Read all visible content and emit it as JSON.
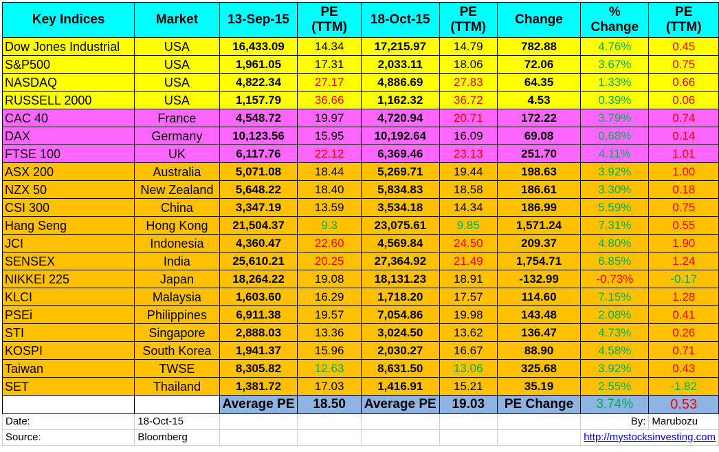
{
  "headers": {
    "key_indices": "Key Indices",
    "market": "Market",
    "date1": "13-Sep-15",
    "pe1_line1": "PE",
    "pe1_line2": "(TTM)",
    "date2": "18-Oct-15",
    "pe2_line1": "PE",
    "pe2_line2": "(TTM)",
    "change": "Change",
    "pct_line1": "%",
    "pct_line2": "Change",
    "pechg_line1": "PE",
    "pechg_line2": "(TTM)"
  },
  "rows": [
    {
      "index": "Dow Jones Industrial",
      "market": "USA",
      "v1": "16,433.09",
      "pe1": "14.34",
      "v2": "17,215.97",
      "pe2": "14.79",
      "chg": "782.88",
      "pct": "4.76%",
      "pechg": "0.45",
      "group": "usa",
      "pe1c": "blk",
      "pe2c": "blk",
      "pctc": "green",
      "pechgc": "red"
    },
    {
      "index": "S&P500",
      "market": "USA",
      "v1": "1,961.05",
      "pe1": "17.31",
      "v2": "2,033.11",
      "pe2": "18.06",
      "chg": "72.06",
      "pct": "3.67%",
      "pechg": "0.75",
      "group": "usa",
      "pe1c": "blk",
      "pe2c": "blk",
      "pctc": "green",
      "pechgc": "red"
    },
    {
      "index": "NASDAQ",
      "market": "USA",
      "v1": "4,822.34",
      "pe1": "27.17",
      "v2": "4,886.69",
      "pe2": "27.83",
      "chg": "64.35",
      "pct": "1.33%",
      "pechg": "0.66",
      "group": "usa",
      "pe1c": "red",
      "pe2c": "red",
      "pctc": "green",
      "pechgc": "red"
    },
    {
      "index": "RUSSELL 2000",
      "market": "USA",
      "v1": "1,157.79",
      "pe1": "36.66",
      "v2": "1,162.32",
      "pe2": "36.72",
      "chg": "4.53",
      "pct": "0.39%",
      "pechg": "0.06",
      "group": "usa",
      "pe1c": "red",
      "pe2c": "red",
      "pctc": "green",
      "pechgc": "red"
    },
    {
      "index": "CAC 40",
      "market": "France",
      "v1": "4,548.72",
      "pe1": "19.97",
      "v2": "4,720.94",
      "pe2": "20.71",
      "chg": "172.22",
      "pct": "3.79%",
      "pechg": "0.74",
      "group": "eu",
      "pe1c": "blk",
      "pe2c": "red",
      "pctc": "green",
      "pechgc": "red"
    },
    {
      "index": "DAX",
      "market": "Germany",
      "v1": "10,123.56",
      "pe1": "15.95",
      "v2": "10,192.64",
      "pe2": "16.09",
      "chg": "69.08",
      "pct": "0.68%",
      "pechg": "0.14",
      "group": "eu",
      "pe1c": "blk",
      "pe2c": "blk",
      "pctc": "green",
      "pechgc": "red"
    },
    {
      "index": "FTSE 100",
      "market": "UK",
      "v1": "6,117.76",
      "pe1": "22.12",
      "v2": "6,369.46",
      "pe2": "23.13",
      "chg": "251.70",
      "pct": "4.11%",
      "pechg": "1.01",
      "group": "eu",
      "pe1c": "red",
      "pe2c": "red",
      "pctc": "green",
      "pechgc": "red"
    },
    {
      "index": "ASX 200",
      "market": "Australia",
      "v1": "5,071.08",
      "pe1": "18.44",
      "v2": "5,269.71",
      "pe2": "19.44",
      "chg": "198.63",
      "pct": "3.92%",
      "pechg": "1.00",
      "group": "asia",
      "pe1c": "blk",
      "pe2c": "blk",
      "pctc": "green",
      "pechgc": "red"
    },
    {
      "index": "NZX 50",
      "market": "New Zealand",
      "v1": "5,648.22",
      "pe1": "18.40",
      "v2": "5,834.83",
      "pe2": "18.58",
      "chg": "186.61",
      "pct": "3.30%",
      "pechg": "0.18",
      "group": "asia",
      "pe1c": "blk",
      "pe2c": "blk",
      "pctc": "green",
      "pechgc": "red"
    },
    {
      "index": "CSI 300",
      "market": "China",
      "v1": "3,347.19",
      "pe1": "13.59",
      "v2": "3,534.18",
      "pe2": "14.34",
      "chg": "186.99",
      "pct": "5.59%",
      "pechg": "0.75",
      "group": "asia",
      "pe1c": "blk",
      "pe2c": "blk",
      "pctc": "green",
      "pechgc": "red"
    },
    {
      "index": "Hang Seng",
      "market": "Hong Kong",
      "v1": "21,504.37",
      "pe1": "9.3",
      "v2": "23,075.61",
      "pe2": "9.85",
      "chg": "1,571.24",
      "pct": "7.31%",
      "pechg": "0.55",
      "group": "asia",
      "pe1c": "green",
      "pe2c": "green",
      "pctc": "green",
      "pechgc": "red"
    },
    {
      "index": "JCI",
      "market": "Indonesia",
      "v1": "4,360.47",
      "pe1": "22.60",
      "v2": "4,569.84",
      "pe2": "24.50",
      "chg": "209.37",
      "pct": "4.80%",
      "pechg": "1.90",
      "group": "asia",
      "pe1c": "red",
      "pe2c": "red",
      "pctc": "green",
      "pechgc": "red"
    },
    {
      "index": "SENSEX",
      "market": "India",
      "v1": "25,610.21",
      "pe1": "20.25",
      "v2": "27,364.92",
      "pe2": "21.49",
      "chg": "1,754.71",
      "pct": "6.85%",
      "pechg": "1.24",
      "group": "asia",
      "pe1c": "red",
      "pe2c": "red",
      "pctc": "green",
      "pechgc": "red"
    },
    {
      "index": "NIKKEI 225",
      "market": "Japan",
      "v1": "18,264.22",
      "pe1": "19.08",
      "v2": "18,131.23",
      "pe2": "18.91",
      "chg": "-132.99",
      "pct": "-0.73%",
      "pechg": "-0.17",
      "group": "asia",
      "pe1c": "blk",
      "pe2c": "blk",
      "pctc": "red",
      "pechgc": "green"
    },
    {
      "index": "KLCI",
      "market": "Malaysia",
      "v1": "1,603.60",
      "pe1": "16.29",
      "v2": "1,718.20",
      "pe2": "17.57",
      "chg": "114.60",
      "pct": "7.15%",
      "pechg": "1.28",
      "group": "asia",
      "pe1c": "blk",
      "pe2c": "blk",
      "pctc": "green",
      "pechgc": "red"
    },
    {
      "index": "PSEi",
      "market": "Philippines",
      "v1": "6,911.38",
      "pe1": "19.57",
      "v2": "7,054.86",
      "pe2": "19.98",
      "chg": "143.48",
      "pct": "2.08%",
      "pechg": "0.41",
      "group": "asia",
      "pe1c": "blk",
      "pe2c": "blk",
      "pctc": "green",
      "pechgc": "red"
    },
    {
      "index": "STI",
      "market": "Singapore",
      "v1": "2,888.03",
      "pe1": "13.36",
      "v2": "3,024.50",
      "pe2": "13.62",
      "chg": "136.47",
      "pct": "4.73%",
      "pechg": "0.26",
      "group": "asia",
      "pe1c": "blk",
      "pe2c": "blk",
      "pctc": "green",
      "pechgc": "red"
    },
    {
      "index": "KOSPI",
      "market": "South Korea",
      "v1": "1,941.37",
      "pe1": "15.96",
      "v2": "2,030.27",
      "pe2": "16.67",
      "chg": "88.90",
      "pct": "4.58%",
      "pechg": "0.71",
      "group": "asia",
      "pe1c": "blk",
      "pe2c": "blk",
      "pctc": "green",
      "pechgc": "red"
    },
    {
      "index": "Taiwan",
      "market": "TWSE",
      "v1": "8,305.82",
      "pe1": "12.63",
      "v2": "8,631.50",
      "pe2": "13.06",
      "chg": "325.68",
      "pct": "3.92%",
      "pechg": "0.43",
      "group": "asia",
      "pe1c": "green",
      "pe2c": "green",
      "pctc": "green",
      "pechgc": "red"
    },
    {
      "index": "SET",
      "market": "Thailand",
      "v1": "1,381.72",
      "pe1": "17.03",
      "v2": "1,416.91",
      "pe2": "15.21",
      "chg": "35.19",
      "pct": "2.55%",
      "pechg": "-1.82",
      "group": "asia",
      "pe1c": "blk",
      "pe2c": "blk",
      "pctc": "green",
      "pechgc": "green"
    }
  ],
  "averages": {
    "label1": "Average PE",
    "value1": "18.50",
    "label2": "Average PE",
    "value2": "19.03",
    "pe_change_label": "PE Change",
    "pct": "3.74%",
    "pe_change": "0.53"
  },
  "footer": {
    "date_label": "Date:",
    "date_value": "18-Oct-15",
    "by_label": "By:",
    "by_value": "Marubozu",
    "source_label": "Source:",
    "source_value": "Bloomberg",
    "link": "http://mystocksinvesting.com"
  },
  "colors": {
    "header_bg": "#00ffff",
    "usa_bg": "#ffff00",
    "europe_bg": "#ff66ff",
    "asia_bg": "#ffc000",
    "average_bg": "#8eb4e3",
    "positive": "#00b050",
    "negative": "#ff0000"
  }
}
